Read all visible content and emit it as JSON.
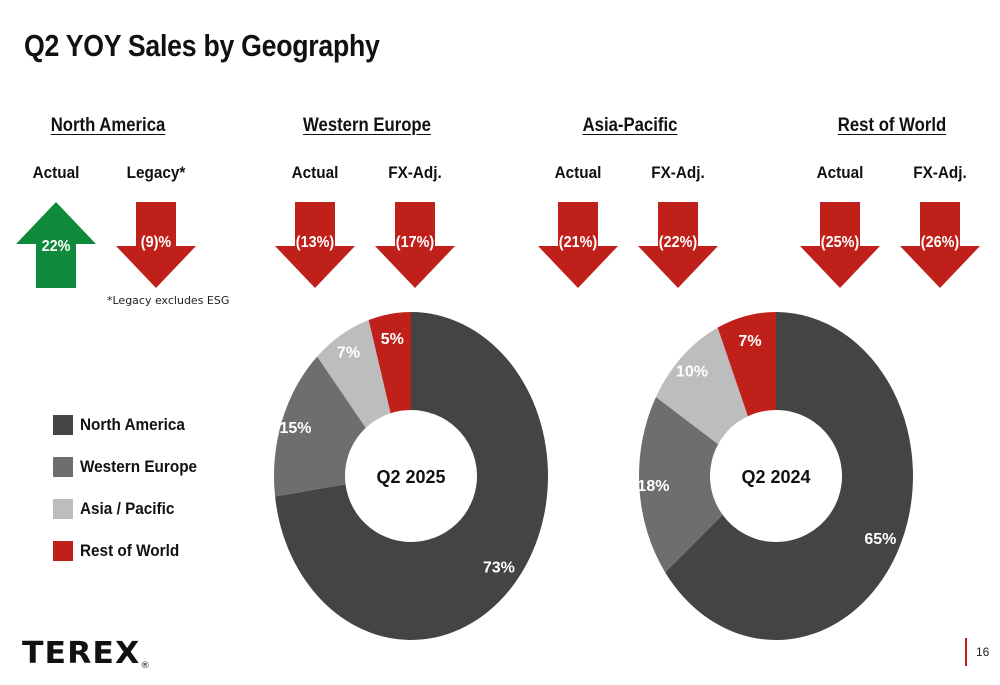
{
  "title": "Q2 YOY Sales by Geography",
  "regions": [
    {
      "name": "North America",
      "metrics": [
        {
          "label": "Actual",
          "value": "22%",
          "direction": "up",
          "color": "#0f8a3c"
        },
        {
          "label": "Legacy*",
          "value": "(9)%",
          "direction": "down",
          "color": "#c0201a"
        }
      ]
    },
    {
      "name": "Western Europe",
      "metrics": [
        {
          "label": "Actual",
          "value": "(13%)",
          "direction": "down",
          "color": "#c0201a"
        },
        {
          "label": "FX-Adj.",
          "value": "(17%)",
          "direction": "down",
          "color": "#c0201a"
        }
      ]
    },
    {
      "name": "Asia-Pacific",
      "metrics": [
        {
          "label": "Actual",
          "value": "(21%)",
          "direction": "down",
          "color": "#c0201a"
        },
        {
          "label": "FX-Adj.",
          "value": "(22%)",
          "direction": "down",
          "color": "#c0201a"
        }
      ]
    },
    {
      "name": "Rest of World",
      "metrics": [
        {
          "label": "Actual",
          "value": "(25%)",
          "direction": "down",
          "color": "#c0201a"
        },
        {
          "label": "FX-Adj.",
          "value": "(26%)",
          "direction": "down",
          "color": "#c0201a"
        }
      ]
    }
  ],
  "footnote": "*Legacy excludes ESG",
  "legend": [
    {
      "label": "North America",
      "color": "#444444"
    },
    {
      "label": "Western Europe",
      "color": "#6e6e6e"
    },
    {
      "label": "Asia / Pacific",
      "color": "#bdbdbd"
    },
    {
      "label": "Rest of World",
      "color": "#c0201a"
    }
  ],
  "chart_data": [
    {
      "type": "pie",
      "center_label": "Q2 2025",
      "categories": [
        "North America",
        "Western Europe",
        "Asia / Pacific",
        "Rest of World"
      ],
      "values": [
        73,
        15,
        7,
        5
      ],
      "value_labels": [
        "73%",
        "15%",
        "7%",
        "5%"
      ],
      "colors": [
        "#444444",
        "#6e6e6e",
        "#bdbdbd",
        "#c0201a"
      ]
    },
    {
      "type": "pie",
      "center_label": "Q2 2024",
      "categories": [
        "North America",
        "Western Europe",
        "Asia / Pacific",
        "Rest of World"
      ],
      "values": [
        65,
        18,
        10,
        7
      ],
      "value_labels": [
        "65%",
        "18%",
        "10%",
        "7%"
      ],
      "colors": [
        "#444444",
        "#6e6e6e",
        "#bdbdbd",
        "#c0201a"
      ]
    }
  ],
  "logo_text": "TEREX",
  "logo_mark": "®",
  "page_number": "16"
}
